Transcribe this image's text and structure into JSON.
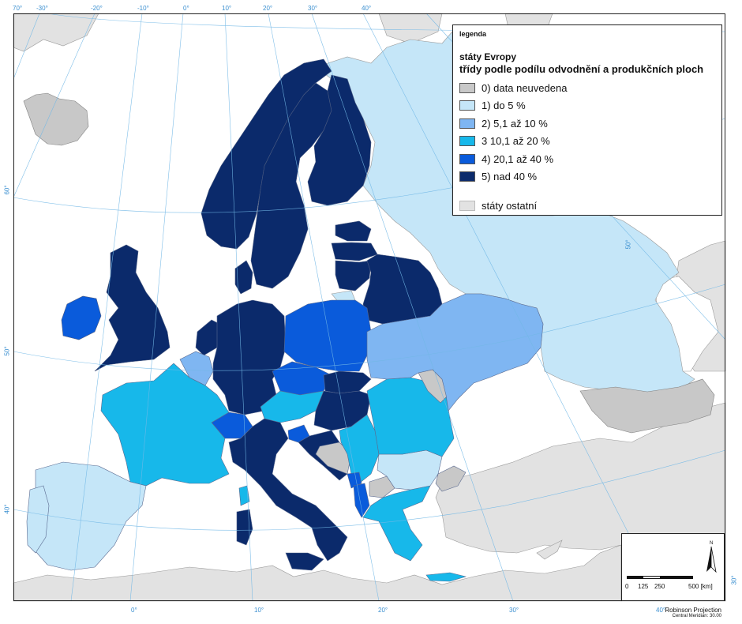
{
  "legend": {
    "heading": "legenda",
    "subtitle": "státy Evropy",
    "title": "třídy podle podílu odvodnění a produkčních ploch",
    "items": [
      {
        "label": "0)  data neuvedena",
        "color": "#c8c8c8"
      },
      {
        "label": "1)  do 5 %",
        "color": "#c5e6f8"
      },
      {
        "label": "2)  5,1 až 10 %",
        "color": "#7fb6f2"
      },
      {
        "label": "3  10,1 až 20 %",
        "color": "#17b8ea"
      },
      {
        "label": "4)  20,1 až 40 %",
        "color": "#0a5bdb"
      },
      {
        "label": "5)  nad 40 %",
        "color": "#0b2a6b"
      }
    ],
    "other": {
      "label": "státy ostatní",
      "color": "#e2e2e2"
    }
  },
  "graticule_labels": {
    "top": [
      "70°",
      "-30°",
      "-20°",
      "-10°",
      "0°",
      "10°",
      "20°",
      "30°",
      "40°"
    ],
    "left": [
      "60°",
      "50°",
      "40°"
    ],
    "bottom": [
      "0°",
      "10°",
      "20°",
      "30°",
      "40°"
    ],
    "right": [
      "50°",
      "30°"
    ]
  },
  "scale": {
    "labels": [
      "0",
      "125",
      "250",
      "500 [km]"
    ]
  },
  "projection": {
    "name": "Robinson Projection",
    "meridian": "Central Meridian: 30.00"
  },
  "countries": {
    "Iceland": 0,
    "Ireland": 4,
    "United Kingdom": 5,
    "Norway": 5,
    "Sweden": 5,
    "Finland": 5,
    "Denmark": 5,
    "Estonia": 5,
    "Latvia": 5,
    "Lithuania": 5,
    "Belarus": 5,
    "Russia": 1,
    "Ukraine": 2,
    "Moldova": 0,
    "Poland": 4,
    "Germany": 5,
    "Netherlands": 5,
    "Belgium": 2,
    "Luxembourg": 2,
    "France": 3,
    "Spain": 1,
    "Portugal": 1,
    "Switzerland": 4,
    "Austria": 3,
    "Czech Republic": 4,
    "Slovakia": 5,
    "Hungary": 5,
    "Slovenia": 4,
    "Croatia": 5,
    "Bosnia and Herzegovina": 0,
    "Serbia": 3,
    "Montenegro": 4,
    "Albania": 4,
    "North Macedonia": 0,
    "Greece": 3,
    "Bulgaria": 1,
    "Romania": 3,
    "Italy": 5,
    "Turkey": 0,
    "Caucasus": 0
  }
}
